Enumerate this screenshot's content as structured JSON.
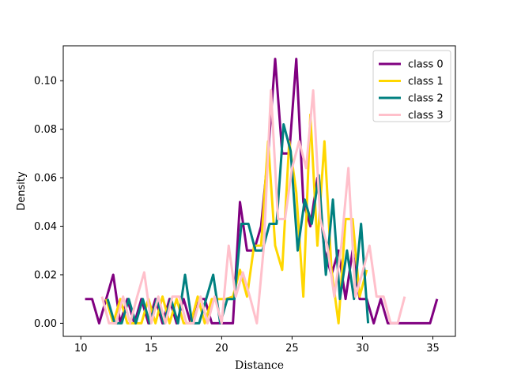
{
  "chart_data": {
    "type": "line",
    "title": "",
    "xlabel": "Distance",
    "ylabel": "Density",
    "xlim": [
      8.75,
      36.6
    ],
    "ylim": [
      -0.0054,
      0.1144
    ],
    "x_ticks": [
      10,
      15,
      20,
      25,
      30,
      35
    ],
    "y_ticks": [
      0.0,
      0.02,
      0.04,
      0.06,
      0.08,
      0.1
    ],
    "y_tick_labels": [
      "0.00",
      "0.02",
      "0.04",
      "0.06",
      "0.08",
      "0.10"
    ],
    "grid": false,
    "legend_position": "top-right",
    "series": [
      {
        "name": "class 0",
        "color": "#800080",
        "x": [
          10.3,
          10.8,
          11.3,
          11.8,
          12.3,
          12.8,
          13.3,
          13.8,
          14.3,
          14.8,
          15.3,
          15.8,
          16.3,
          16.8,
          17.3,
          17.8,
          18.3,
          18.8,
          19.3,
          19.8,
          20.3,
          20.8,
          21.3,
          21.8,
          22.3,
          22.8,
          23.3,
          23.8,
          24.3,
          24.8,
          25.3,
          25.8,
          26.3,
          26.8,
          27.3,
          27.8,
          28.3,
          28.8,
          29.3,
          29.8,
          30.3,
          30.8,
          31.3,
          31.8,
          32.3,
          32.8,
          33.3,
          33.8,
          34.3,
          34.8,
          35.3
        ],
        "y": [
          0.01,
          0.01,
          0.0,
          0.01,
          0.02,
          0.0,
          0.01,
          0.0,
          0.01,
          0.0,
          0.01,
          0.0,
          0.01,
          0.0,
          0.01,
          0.0,
          0.01,
          0.01,
          0.0,
          0.0,
          0.0,
          0.0,
          0.05,
          0.03,
          0.03,
          0.04,
          0.07,
          0.109,
          0.07,
          0.07,
          0.109,
          0.05,
          0.04,
          0.06,
          0.03,
          0.02,
          0.03,
          0.01,
          0.03,
          0.01,
          0.01,
          0.0,
          0.01,
          0.0,
          0.0,
          0.0,
          0.0,
          0.0,
          0.0,
          0.0,
          0.01
        ]
      },
      {
        "name": "class 1",
        "color": "#FFD700",
        "x": [
          11.8,
          12.3,
          12.8,
          13.3,
          13.8,
          14.3,
          14.8,
          15.3,
          15.8,
          16.3,
          16.8,
          17.3,
          17.8,
          18.3,
          18.8,
          19.3,
          19.8,
          20.3,
          20.8,
          21.3,
          21.8,
          22.3,
          22.8,
          23.3,
          23.8,
          24.3,
          24.8,
          25.3,
          25.8,
          26.3,
          26.8,
          27.3,
          27.8,
          28.3,
          28.8,
          29.3,
          29.8,
          30.3
        ],
        "y": [
          0.01,
          0.0,
          0.01,
          0.0,
          0.0,
          0.0,
          0.01,
          0.0,
          0.011,
          0.0,
          0.01,
          0.0,
          0.0,
          0.011,
          0.0,
          0.01,
          0.01,
          0.01,
          0.011,
          0.022,
          0.011,
          0.032,
          0.032,
          0.075,
          0.032,
          0.022,
          0.075,
          0.054,
          0.011,
          0.086,
          0.032,
          0.075,
          0.022,
          0.0,
          0.043,
          0.043,
          0.011,
          0.022
        ]
      },
      {
        "name": "class 2",
        "color": "#008080",
        "x": [
          11.9,
          12.4,
          12.9,
          13.4,
          13.9,
          14.4,
          14.9,
          15.4,
          15.9,
          16.4,
          16.9,
          17.4,
          17.9,
          18.4,
          18.9,
          19.4,
          19.9,
          20.4,
          20.9,
          21.4,
          21.9,
          22.4,
          22.9,
          23.4,
          23.9,
          24.4,
          24.9,
          25.4,
          25.9,
          26.4,
          26.9,
          27.4,
          27.9,
          28.4,
          28.9,
          29.4,
          29.9,
          30.4
        ],
        "y": [
          0.01,
          0.0,
          0.0,
          0.01,
          0.0,
          0.01,
          0.0,
          0.01,
          0.0,
          0.01,
          0.0,
          0.02,
          0.0,
          0.0,
          0.01,
          0.02,
          0.0,
          0.01,
          0.01,
          0.041,
          0.041,
          0.03,
          0.03,
          0.041,
          0.041,
          0.082,
          0.071,
          0.03,
          0.051,
          0.041,
          0.061,
          0.02,
          0.051,
          0.01,
          0.03,
          0.01,
          0.041,
          0.0
        ]
      },
      {
        "name": "class 3",
        "color": "#FFC0CB",
        "x": [
          11.5,
          12.0,
          12.5,
          13.0,
          13.5,
          14.0,
          14.5,
          15.0,
          15.5,
          16.0,
          16.5,
          17.0,
          17.5,
          18.0,
          18.5,
          19.0,
          19.5,
          20.0,
          20.5,
          21.0,
          21.5,
          22.0,
          22.5,
          23.0,
          23.5,
          24.0,
          24.5,
          25.0,
          25.5,
          26.0,
          26.5,
          27.0,
          27.5,
          28.0,
          28.5,
          29.0,
          29.5,
          30.0,
          30.5,
          31.0,
          31.5,
          32.0,
          32.5,
          33.0
        ],
        "y": [
          0.011,
          0.0,
          0.0,
          0.011,
          0.0,
          0.011,
          0.021,
          0.0,
          0.011,
          0.0,
          0.011,
          0.011,
          0.0,
          0.0,
          0.011,
          0.0,
          0.011,
          0.0,
          0.032,
          0.011,
          0.021,
          0.011,
          0.0,
          0.032,
          0.096,
          0.043,
          0.043,
          0.064,
          0.075,
          0.064,
          0.096,
          0.043,
          0.032,
          0.011,
          0.032,
          0.064,
          0.011,
          0.021,
          0.032,
          0.011,
          0.011,
          0.0,
          0.0,
          0.011
        ]
      }
    ]
  }
}
